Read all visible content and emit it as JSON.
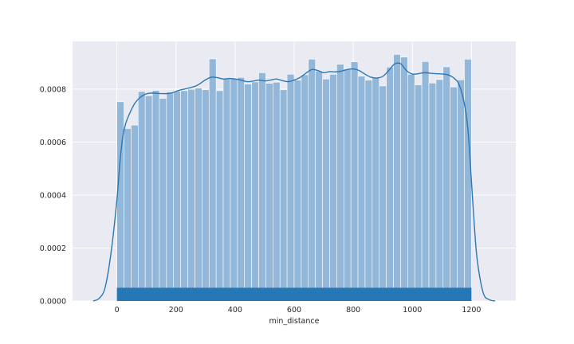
{
  "chart_data": {
    "type": "bar",
    "style": "histogram-with-kde-and-rug",
    "title": "",
    "xlabel": "min_distance",
    "ylabel": "",
    "xlim": [
      -150,
      1350
    ],
    "ylim": [
      0,
      0.00098
    ],
    "xticks": [
      0,
      200,
      400,
      600,
      800,
      1000,
      1200
    ],
    "yticks": [
      0.0,
      0.0002,
      0.0004,
      0.0006,
      0.0008
    ],
    "ytick_labels": [
      "0.0000",
      "0.0002",
      "0.0004",
      "0.0006",
      "0.0008"
    ],
    "grid": true,
    "legend": "none",
    "colors": {
      "plot_background": "#eaeaf2",
      "grid": "#ffffff",
      "bar_fill": "#92b7d9",
      "kde_line": "#2a78b4",
      "rug": "#2678b5"
    },
    "bin_start": 0,
    "bin_width": 24,
    "bin_heights": [
      0.000752,
      0.000651,
      0.000664,
      0.000791,
      0.000775,
      0.000795,
      0.000765,
      0.000789,
      0.000792,
      0.000794,
      0.000799,
      0.000804,
      0.000798,
      0.000914,
      0.000794,
      0.000839,
      0.000839,
      0.000844,
      0.000819,
      0.000827,
      0.000862,
      0.000822,
      0.000826,
      0.000798,
      0.000856,
      0.000834,
      0.000854,
      0.000913,
      0.000868,
      0.000838,
      0.000856,
      0.000894,
      0.000875,
      0.000903,
      0.000849,
      0.000834,
      0.000844,
      0.000812,
      0.000883,
      0.000931,
      0.000921,
      0.000856,
      0.000816,
      0.000904,
      0.000823,
      0.000836,
      0.000884,
      0.000808,
      0.000835,
      0.000913
    ],
    "kde_x": [
      -80,
      -60,
      -40,
      -20,
      0,
      10,
      20,
      30,
      40,
      60,
      80,
      100,
      120,
      150,
      180,
      210,
      240,
      270,
      300,
      320,
      340,
      360,
      380,
      400,
      420,
      440,
      460,
      480,
      500,
      520,
      540,
      560,
      580,
      600,
      620,
      640,
      660,
      680,
      700,
      720,
      740,
      760,
      780,
      800,
      820,
      840,
      860,
      880,
      900,
      920,
      940,
      960,
      980,
      1000,
      1020,
      1040,
      1060,
      1080,
      1100,
      1120,
      1140,
      1160,
      1180,
      1190,
      1200,
      1210,
      1220,
      1240,
      1260,
      1280
    ],
    "kde_y": [
      0.0,
      1e-05,
      5e-05,
      0.00018,
      0.00038,
      0.00052,
      0.00062,
      0.00067,
      0.0007,
      0.000745,
      0.00077,
      0.000782,
      0.000785,
      0.000783,
      0.000784,
      0.000795,
      0.000803,
      0.000813,
      0.000835,
      0.000845,
      0.000843,
      0.000838,
      0.00084,
      0.000838,
      0.000834,
      0.000828,
      0.00083,
      0.000834,
      0.000831,
      0.000834,
      0.000838,
      0.000832,
      0.000828,
      0.000834,
      0.000844,
      0.00086,
      0.000874,
      0.00087,
      0.000862,
      0.000866,
      0.000865,
      0.000868,
      0.000874,
      0.000876,
      0.00087,
      0.000856,
      0.000845,
      0.000842,
      0.000848,
      0.00087,
      0.000895,
      0.000896,
      0.00087,
      0.000857,
      0.000858,
      0.000862,
      0.00086,
      0.000858,
      0.000857,
      0.000854,
      0.000842,
      0.000812,
      0.00072,
      0.00062,
      0.00045,
      0.00028,
      0.00015,
      3e-05,
      5e-06,
      0.0
    ],
    "rug_x_range": [
      0,
      1200
    ],
    "rug_height_fraction": 0.051
  }
}
